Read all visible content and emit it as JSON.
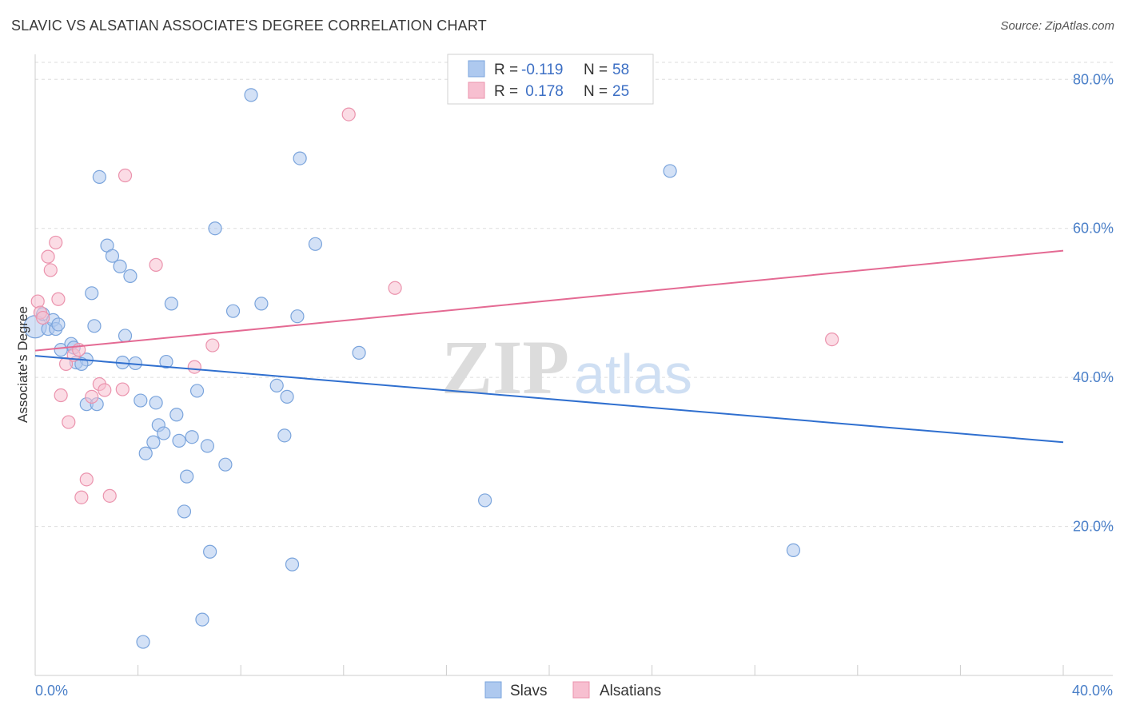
{
  "header": {
    "title": "SLAVIC VS ALSATIAN ASSOCIATE'S DEGREE CORRELATION CHART",
    "source": "Source: ZipAtlas.com"
  },
  "watermark": {
    "zip": "ZIP",
    "atlas": "atlas"
  },
  "legend": {
    "rows": [
      {
        "r_label": "R = ",
        "r_value": "-0.119",
        "n_label": "N = ",
        "n_value": "58"
      },
      {
        "r_label": "R = ",
        "r_value": " 0.178",
        "n_label": "N = ",
        "n_value": "25"
      }
    ]
  },
  "colors": {
    "slavs_fill": "#aec9ef",
    "slavs_stroke": "#7aa4dc",
    "slavs_line": "#2f6fcf",
    "alsatians_fill": "#f7bfd0",
    "alsatians_stroke": "#eb93ad",
    "alsatians_line": "#e46a93",
    "grid": "#dddddd",
    "tick_text": "#4a7fc8"
  },
  "chart_data": {
    "type": "scatter",
    "title": "SLAVIC VS ALSATIAN ASSOCIATE'S DEGREE CORRELATION CHART",
    "xlabel": "",
    "ylabel": "Associate's Degree",
    "xlim": [
      0,
      40
    ],
    "ylim": [
      0,
      84
    ],
    "x_tick_labels": [
      "0.0%",
      "40.0%"
    ],
    "y_ticks": [
      20,
      40,
      60,
      80
    ],
    "y_tick_labels": [
      "20.0%",
      "40.0%",
      "60.0%",
      "80.0%"
    ],
    "legend_position": "top-center",
    "series": [
      {
        "name": "Slavs",
        "r": -0.119,
        "n": 58,
        "trend": {
          "x": [
            0,
            40
          ],
          "y": [
            42.9,
            31.3
          ]
        },
        "points": [
          [
            0.0,
            46.8
          ],
          [
            0.3,
            48.5
          ],
          [
            0.5,
            46.5
          ],
          [
            0.7,
            47.7
          ],
          [
            0.8,
            46.5
          ],
          [
            0.9,
            47.1
          ],
          [
            1.0,
            43.7
          ],
          [
            1.4,
            44.5
          ],
          [
            1.5,
            44.0
          ],
          [
            1.6,
            42.0
          ],
          [
            2.0,
            42.4
          ],
          [
            2.0,
            36.4
          ],
          [
            2.4,
            36.4
          ],
          [
            2.3,
            46.9
          ],
          [
            2.2,
            51.3
          ],
          [
            2.5,
            66.9
          ],
          [
            2.8,
            57.7
          ],
          [
            3.0,
            56.3
          ],
          [
            3.3,
            54.9
          ],
          [
            3.4,
            42.0
          ],
          [
            3.5,
            45.6
          ],
          [
            3.7,
            53.6
          ],
          [
            3.9,
            41.9
          ],
          [
            4.1,
            36.9
          ],
          [
            4.3,
            29.8
          ],
          [
            4.6,
            31.3
          ],
          [
            4.7,
            36.6
          ],
          [
            4.8,
            33.6
          ],
          [
            5.0,
            32.5
          ],
          [
            5.1,
            42.1
          ],
          [
            5.3,
            49.9
          ],
          [
            5.5,
            35.0
          ],
          [
            5.6,
            31.5
          ],
          [
            5.8,
            22.0
          ],
          [
            5.9,
            26.7
          ],
          [
            6.1,
            32.0
          ],
          [
            6.3,
            38.2
          ],
          [
            6.5,
            7.5
          ],
          [
            6.7,
            30.8
          ],
          [
            6.8,
            16.6
          ],
          [
            7.0,
            60.0
          ],
          [
            7.4,
            28.3
          ],
          [
            7.7,
            48.9
          ],
          [
            8.4,
            77.9
          ],
          [
            8.8,
            49.9
          ],
          [
            9.4,
            38.9
          ],
          [
            9.7,
            32.2
          ],
          [
            9.8,
            37.4
          ],
          [
            10.0,
            14.9
          ],
          [
            10.2,
            48.2
          ],
          [
            10.3,
            69.4
          ],
          [
            10.9,
            57.9
          ],
          [
            12.6,
            43.3
          ],
          [
            17.5,
            23.5
          ],
          [
            24.7,
            67.7
          ],
          [
            29.5,
            16.8
          ],
          [
            4.2,
            4.5
          ],
          [
            1.8,
            41.8
          ]
        ]
      },
      {
        "name": "Alsatians",
        "r": 0.178,
        "n": 25,
        "trend": {
          "x": [
            0,
            40
          ],
          "y": [
            43.6,
            57.0
          ]
        },
        "points": [
          [
            0.1,
            50.2
          ],
          [
            0.2,
            48.7
          ],
          [
            0.3,
            48.0
          ],
          [
            0.5,
            56.2
          ],
          [
            0.6,
            54.4
          ],
          [
            0.8,
            58.1
          ],
          [
            0.9,
            50.5
          ],
          [
            1.0,
            37.6
          ],
          [
            1.2,
            41.8
          ],
          [
            1.3,
            34.0
          ],
          [
            1.5,
            43.0
          ],
          [
            1.7,
            43.7
          ],
          [
            1.8,
            23.9
          ],
          [
            2.0,
            26.3
          ],
          [
            2.2,
            37.4
          ],
          [
            2.5,
            39.1
          ],
          [
            2.7,
            38.3
          ],
          [
            2.9,
            24.1
          ],
          [
            3.4,
            38.4
          ],
          [
            3.5,
            67.1
          ],
          [
            4.7,
            55.1
          ],
          [
            6.2,
            41.4
          ],
          [
            6.9,
            44.3
          ],
          [
            12.2,
            75.3
          ],
          [
            14.0,
            52.0
          ]
        ]
      }
    ],
    "extra_points_alsatians": [
      [
        31.0,
        45.1
      ]
    ]
  },
  "bottom_legend": {
    "items": [
      {
        "label": "Slavs"
      },
      {
        "label": "Alsatians"
      }
    ]
  }
}
